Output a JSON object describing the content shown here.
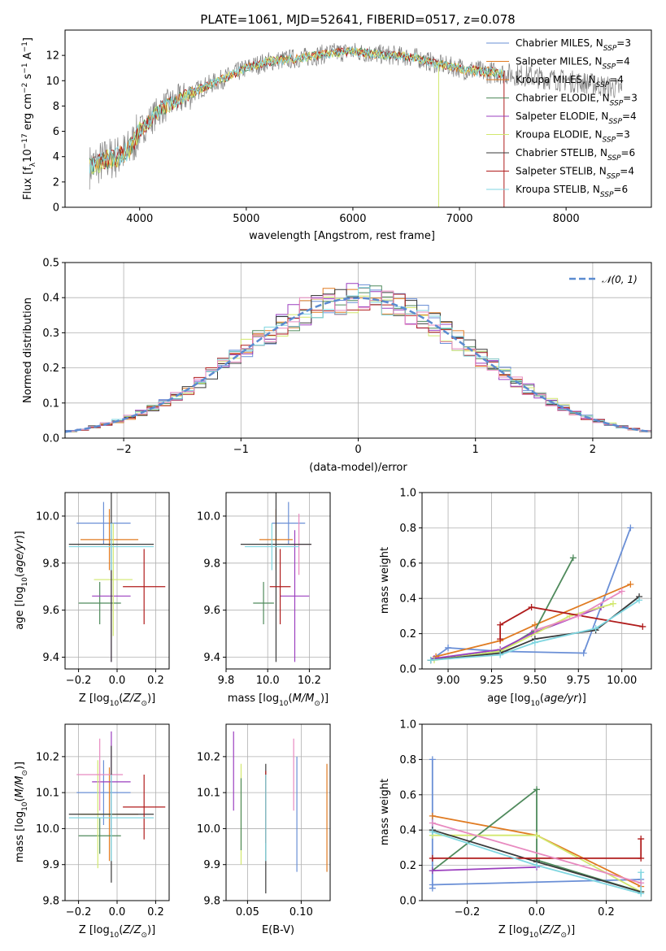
{
  "title": "PLATE=1061, MJD=52641, FIBERID=0517, z=0.078",
  "colors": {
    "chabrier_miles": "#6a8fd6",
    "salpeter_miles": "#e07b22",
    "kroupa_miles": "#e07b22",
    "chabrier_elodie": "#4f8a5c",
    "salpeter_elodie": "#9b3fbf",
    "kroupa_elodie": "#d2e86e",
    "chabrier_stelib": "#3a3a3a",
    "salpeter_stelib": "#b01c1c",
    "kroupa_stelib": "#7fd6e0",
    "data": "#808080",
    "pink": "#e88ac0",
    "normal": "#5b8bd0"
  },
  "chart_data": [
    {
      "id": "spectrum",
      "type": "line",
      "xlabel": "wavelength [Angstrom, rest frame]",
      "ylabel": "Flux [f_λ10^-17 erg cm^-2 s^-1 A^-1]",
      "xlim": [
        3300,
        8800
      ],
      "ylim": [
        0,
        14
      ],
      "xticks": [
        4000,
        5000,
        6000,
        7000,
        8000
      ],
      "yticks": [
        0,
        2,
        4,
        6,
        8,
        10,
        12
      ],
      "legend_position": "right",
      "legend": [
        {
          "model": "Chabrier MILES",
          "n": "3"
        },
        {
          "model": "Salpeter MILES",
          "n": "4"
        },
        {
          "model": "Kroupa MILES",
          "n": "4"
        },
        {
          "model": "Chabrier ELODIE",
          "n": "3"
        },
        {
          "model": "Salpeter ELODIE",
          "n": "4"
        },
        {
          "model": "Kroupa ELODIE",
          "n": "3"
        },
        {
          "model": "Chabrier STELIB",
          "n": "6"
        },
        {
          "model": "Salpeter STELIB",
          "n": "4"
        },
        {
          "model": "Kroupa STELIB",
          "n": "6"
        }
      ],
      "continuum": [
        [
          3530,
          3.2
        ],
        [
          3700,
          3.8
        ],
        [
          3800,
          4.0
        ],
        [
          3900,
          4.5
        ],
        [
          4000,
          6.0
        ],
        [
          4200,
          7.8
        ],
        [
          4400,
          8.6
        ],
        [
          4600,
          9.5
        ],
        [
          4800,
          10.2
        ],
        [
          5000,
          11.0
        ],
        [
          5200,
          11.5
        ],
        [
          5400,
          11.7
        ],
        [
          5600,
          11.9
        ],
        [
          5800,
          12.2
        ],
        [
          6000,
          12.3
        ],
        [
          6200,
          12.1
        ],
        [
          6400,
          12.0
        ],
        [
          6600,
          11.8
        ],
        [
          6800,
          11.3
        ],
        [
          7000,
          11.0
        ],
        [
          7200,
          10.7
        ],
        [
          7400,
          10.6
        ],
        [
          7600,
          10.4
        ],
        [
          7800,
          10.2
        ],
        [
          8000,
          10.0
        ],
        [
          8200,
          9.8
        ],
        [
          8400,
          9.5
        ],
        [
          8520,
          9.3
        ]
      ]
    },
    {
      "id": "residuals",
      "type": "step-histogram",
      "xlabel": "(data-model)/error",
      "ylabel": "Normed distribution",
      "xlim": [
        -2.5,
        2.5
      ],
      "ylim": [
        0,
        0.5
      ],
      "xticks": [
        -2,
        -1,
        0,
        1,
        2
      ],
      "yticks": [
        0.0,
        0.1,
        0.2,
        0.3,
        0.4,
        0.5
      ],
      "legend": "𝒩(0, 1)",
      "legend_position": "top-right",
      "bin_width": 0.1
    },
    {
      "id": "age_vs_Z",
      "type": "errorbar",
      "xlabel": "Z [log10(Z/Z☉)]",
      "ylabel": "age [log10(age/yr)]",
      "xlim": [
        -0.27,
        0.27
      ],
      "ylim": [
        9.35,
        10.1
      ],
      "xticks": [
        -0.2,
        0.0,
        0.2
      ],
      "yticks": [
        9.4,
        9.6,
        9.8,
        10.0
      ],
      "points": [
        {
          "c": "chabrier_miles",
          "x": -0.07,
          "xerr": 0.14,
          "y": 9.97,
          "yerr": 0.09
        },
        {
          "c": "salpeter_miles",
          "x": -0.04,
          "xerr": 0.15,
          "y": 9.9,
          "yerr": 0.13
        },
        {
          "c": "chabrier_elodie",
          "x": -0.09,
          "xerr": 0.11,
          "y": 9.63,
          "yerr": 0.09
        },
        {
          "c": "salpeter_elodie",
          "x": -0.03,
          "xerr": 0.1,
          "y": 9.66,
          "yerr": 0.28
        },
        {
          "c": "kroupa_elodie",
          "x": -0.02,
          "xerr": 0.1,
          "y": 9.73,
          "yerr": 0.24
        },
        {
          "c": "chabrier_stelib",
          "x": -0.03,
          "xerr": 0.22,
          "y": 9.88,
          "yerr": 0.5
        },
        {
          "c": "salpeter_stelib",
          "x": 0.14,
          "xerr": 0.11,
          "y": 9.7,
          "yerr": 0.16
        },
        {
          "c": "kroupa_stelib",
          "x": -0.03,
          "xerr": 0.22,
          "y": 9.87,
          "yerr": 0.1
        }
      ]
    },
    {
      "id": "age_vs_mass",
      "type": "errorbar",
      "xlabel": "mass [log10(M/M☉)]",
      "xlim": [
        9.8,
        10.3
      ],
      "ylim": [
        9.35,
        10.1
      ],
      "xticks": [
        9.8,
        10.0,
        10.2
      ],
      "yticks": [
        9.4,
        9.6,
        9.8,
        10.0
      ],
      "points": [
        {
          "c": "chabrier_miles",
          "x": 10.1,
          "xerr": 0.08,
          "y": 9.97,
          "yerr": 0.09
        },
        {
          "c": "salpeter_miles",
          "x": 10.04,
          "xerr": 0.08,
          "y": 9.9,
          "yerr": 0.13
        },
        {
          "c": "chabrier_elodie",
          "x": 9.98,
          "xerr": 0.05,
          "y": 9.63,
          "yerr": 0.09
        },
        {
          "c": "salpeter_elodie",
          "x": 10.13,
          "xerr": 0.07,
          "y": 9.66,
          "yerr": 0.28
        },
        {
          "c": "pink",
          "x": 10.15,
          "xerr": 0.06,
          "y": 9.88,
          "yerr": 0.13
        },
        {
          "c": "chabrier_stelib",
          "x": 10.04,
          "xerr": 0.17,
          "y": 9.88,
          "yerr": 0.5
        },
        {
          "c": "salpeter_stelib",
          "x": 10.06,
          "xerr": 0.05,
          "y": 9.7,
          "yerr": 0.16
        },
        {
          "c": "kroupa_stelib",
          "x": 10.02,
          "xerr": 0.13,
          "y": 9.87,
          "yerr": 0.1
        }
      ]
    },
    {
      "id": "weight_vs_age",
      "type": "line",
      "xlabel": "age [log10(age/yr)]",
      "ylabel": "mass weight",
      "xlim": [
        8.85,
        10.17
      ],
      "ylim": [
        0,
        1
      ],
      "xticks": [
        9.0,
        9.25,
        9.5,
        9.75,
        10.0
      ],
      "yticks": [
        0.0,
        0.2,
        0.4,
        0.6,
        0.8,
        1.0
      ],
      "series": [
        {
          "c": "chabrier_miles",
          "x": [
            8.9,
            9.0,
            9.3,
            9.78,
            10.05
          ],
          "y": [
            0.05,
            0.12,
            0.1,
            0.09,
            0.8
          ]
        },
        {
          "c": "salpeter_miles",
          "x": [
            8.93,
            9.3,
            9.5,
            10.05
          ],
          "y": [
            0.07,
            0.16,
            0.25,
            0.48
          ]
        },
        {
          "c": "chabrier_elodie",
          "x": [
            8.9,
            9.3,
            9.5,
            9.72
          ],
          "y": [
            0.05,
            0.1,
            0.22,
            0.63
          ]
        },
        {
          "c": "salpeter_elodie",
          "x": [
            8.92,
            9.3,
            9.48,
            9.88
          ],
          "y": [
            0.06,
            0.11,
            0.2,
            0.35
          ]
        },
        {
          "c": "kroupa_elodie",
          "x": [
            8.92,
            9.3,
            9.7,
            9.95
          ],
          "y": [
            0.05,
            0.1,
            0.3,
            0.37
          ]
        },
        {
          "c": "chabrier_stelib",
          "x": [
            8.9,
            9.3,
            9.5,
            9.85,
            10.1
          ],
          "y": [
            0.05,
            0.09,
            0.17,
            0.22,
            0.41
          ]
        },
        {
          "c": "salpeter_stelib",
          "x": [
            9.3,
            9.3,
            9.48,
            10.12
          ],
          "y": [
            0.17,
            0.25,
            0.35,
            0.24
          ]
        },
        {
          "c": "kroupa_stelib",
          "x": [
            8.9,
            9.3,
            9.5,
            9.85,
            10.1
          ],
          "y": [
            0.05,
            0.08,
            0.15,
            0.23,
            0.39
          ]
        },
        {
          "c": "pink",
          "x": [
            9.5,
            9.75,
            10.0
          ],
          "y": [
            0.22,
            0.3,
            0.44
          ]
        }
      ]
    },
    {
      "id": "mass_vs_Z",
      "type": "errorbar",
      "xlabel": "Z [log10(Z/Z☉)]",
      "ylabel": "mass [log10(M/M☉)]",
      "xlim": [
        -0.27,
        0.27
      ],
      "ylim": [
        9.8,
        10.29
      ],
      "xticks": [
        -0.2,
        0.0,
        0.2
      ],
      "yticks": [
        9.8,
        9.9,
        10.0,
        10.1,
        10.2
      ],
      "points": [
        {
          "c": "chabrier_miles",
          "x": -0.07,
          "xerr": 0.14,
          "y": 10.1,
          "yerr": 0.09
        },
        {
          "c": "salpeter_miles",
          "x": -0.04,
          "xerr": 0.15,
          "y": 10.04,
          "yerr": 0.13
        },
        {
          "c": "chabrier_elodie",
          "x": -0.09,
          "xerr": 0.11,
          "y": 9.98,
          "yerr": 0.05
        },
        {
          "c": "salpeter_elodie",
          "x": -0.03,
          "xerr": 0.1,
          "y": 10.13,
          "yerr": 0.14
        },
        {
          "c": "kroupa_elodie",
          "x": -0.1,
          "xerr": 0.1,
          "y": 10.04,
          "yerr": 0.15
        },
        {
          "c": "pink",
          "x": -0.09,
          "xerr": 0.12,
          "y": 10.15,
          "yerr": 0.1
        },
        {
          "c": "chabrier_stelib",
          "x": -0.03,
          "xerr": 0.22,
          "y": 10.04,
          "yerr": 0.19
        },
        {
          "c": "salpeter_stelib",
          "x": 0.14,
          "xerr": 0.11,
          "y": 10.06,
          "yerr": 0.09
        },
        {
          "c": "kroupa_stelib",
          "x": -0.03,
          "xerr": 0.22,
          "y": 10.03,
          "yerr": 0.12
        }
      ]
    },
    {
      "id": "mass_vs_ebv",
      "type": "errorbar",
      "xlabel": "E(B-V)",
      "xlim": [
        0.03,
        0.127
      ],
      "ylim": [
        9.8,
        10.29
      ],
      "xticks": [
        0.05,
        0.1
      ],
      "yticks": [
        9.8,
        9.9,
        10.0,
        10.1,
        10.2
      ],
      "points": [
        {
          "c": "salpeter_elodie",
          "x": 0.037,
          "y": 10.16,
          "yerr": 0.11
        },
        {
          "c": "kroupa_elodie",
          "x": 0.044,
          "y": 10.04,
          "yerr": 0.14
        },
        {
          "c": "chabrier_elodie",
          "x": 0.044,
          "y": 10.04,
          "yerr": 0.1
        },
        {
          "c": "chabrier_stelib",
          "x": 0.067,
          "y": 10.0,
          "yerr": 0.18
        },
        {
          "c": "salpeter_stelib",
          "x": 0.067,
          "y": 10.06,
          "yerr": 0.1
        },
        {
          "c": "kroupa_stelib",
          "x": 0.067,
          "y": 10.03,
          "yerr": 0.12
        },
        {
          "c": "pink",
          "x": 0.093,
          "y": 10.15,
          "yerr": 0.1
        },
        {
          "c": "chabrier_miles",
          "x": 0.096,
          "y": 10.04,
          "yerr": 0.16
        },
        {
          "c": "salpeter_miles",
          "x": 0.124,
          "y": 10.03,
          "yerr": 0.15
        }
      ]
    },
    {
      "id": "weight_vs_Z",
      "type": "line",
      "xlabel": "Z [log10(Z/Z☉)]",
      "ylabel": "mass weight",
      "xlim": [
        -0.33,
        0.33
      ],
      "ylim": [
        0,
        1
      ],
      "xticks": [
        -0.2,
        0.0,
        0.2
      ],
      "yticks": [
        0.0,
        0.2,
        0.4,
        0.6,
        0.8,
        1.0
      ],
      "series": [
        {
          "c": "chabrier_miles",
          "x": [
            -0.3,
            -0.3,
            -0.3,
            0.3
          ],
          "y": [
            0.8,
            0.07,
            0.09,
            0.12
          ]
        },
        {
          "c": "salpeter_miles",
          "x": [
            -0.3,
            0.0,
            0.3
          ],
          "y": [
            0.48,
            0.37,
            0.08
          ]
        },
        {
          "c": "chabrier_elodie",
          "x": [
            -0.3,
            0.0,
            0.0,
            0.3
          ],
          "y": [
            0.17,
            0.63,
            0.23,
            0.05
          ]
        },
        {
          "c": "salpeter_elodie",
          "x": [
            -0.3,
            0.0
          ],
          "y": [
            0.17,
            0.19
          ]
        },
        {
          "c": "kroupa_elodie",
          "x": [
            -0.3,
            0.0,
            0.3
          ],
          "y": [
            0.37,
            0.37,
            0.05
          ]
        },
        {
          "c": "chabrier_stelib",
          "x": [
            -0.3,
            0.0,
            0.3
          ],
          "y": [
            0.4,
            0.22,
            0.05
          ]
        },
        {
          "c": "salpeter_stelib",
          "x": [
            -0.3,
            0.3,
            0.3
          ],
          "y": [
            0.24,
            0.24,
            0.35
          ]
        },
        {
          "c": "kroupa_stelib",
          "x": [
            -0.3,
            0.0,
            0.3,
            0.3
          ],
          "y": [
            0.39,
            0.2,
            0.04,
            0.16
          ]
        },
        {
          "c": "pink",
          "x": [
            -0.3,
            0.3
          ],
          "y": [
            0.44,
            0.1
          ]
        }
      ]
    }
  ]
}
